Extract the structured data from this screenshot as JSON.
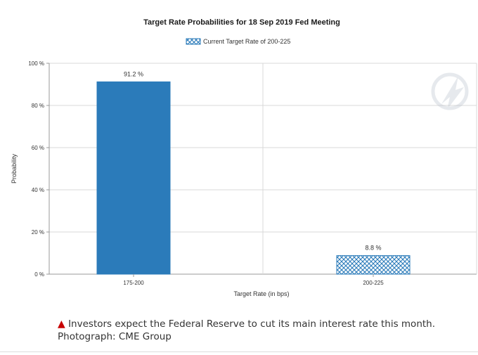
{
  "chart_data": {
    "type": "bar",
    "title": "Target Rate Probabilities for 18 Sep 2019 Fed Meeting",
    "legend": {
      "label": "Current Target Rate of 200-225",
      "placement": "top-center"
    },
    "xlabel": "Target Rate (in bps)",
    "ylabel": "Probability",
    "ylim": [
      0,
      100
    ],
    "yticks": [
      0,
      20,
      40,
      60,
      80,
      100
    ],
    "ytick_labels": [
      "0 %",
      "20 %",
      "40 %",
      "60 %",
      "80 %",
      "100 %"
    ],
    "categories": [
      "175-200",
      "200-225"
    ],
    "values": [
      91.2,
      8.8
    ],
    "value_labels": [
      "91.2 %",
      "8.8 %"
    ],
    "bar_styles": [
      "solid",
      "crosshatch"
    ],
    "colors": {
      "bar": "#2b7bba",
      "hatch": "#2b7bba",
      "grid": "#d9d9d9",
      "axis": "#999999"
    },
    "grid": true
  },
  "caption": {
    "marker": "▲",
    "text": "Investors expect the Federal Reserve to cut its main interest rate this month. Photograph: CME Group"
  }
}
